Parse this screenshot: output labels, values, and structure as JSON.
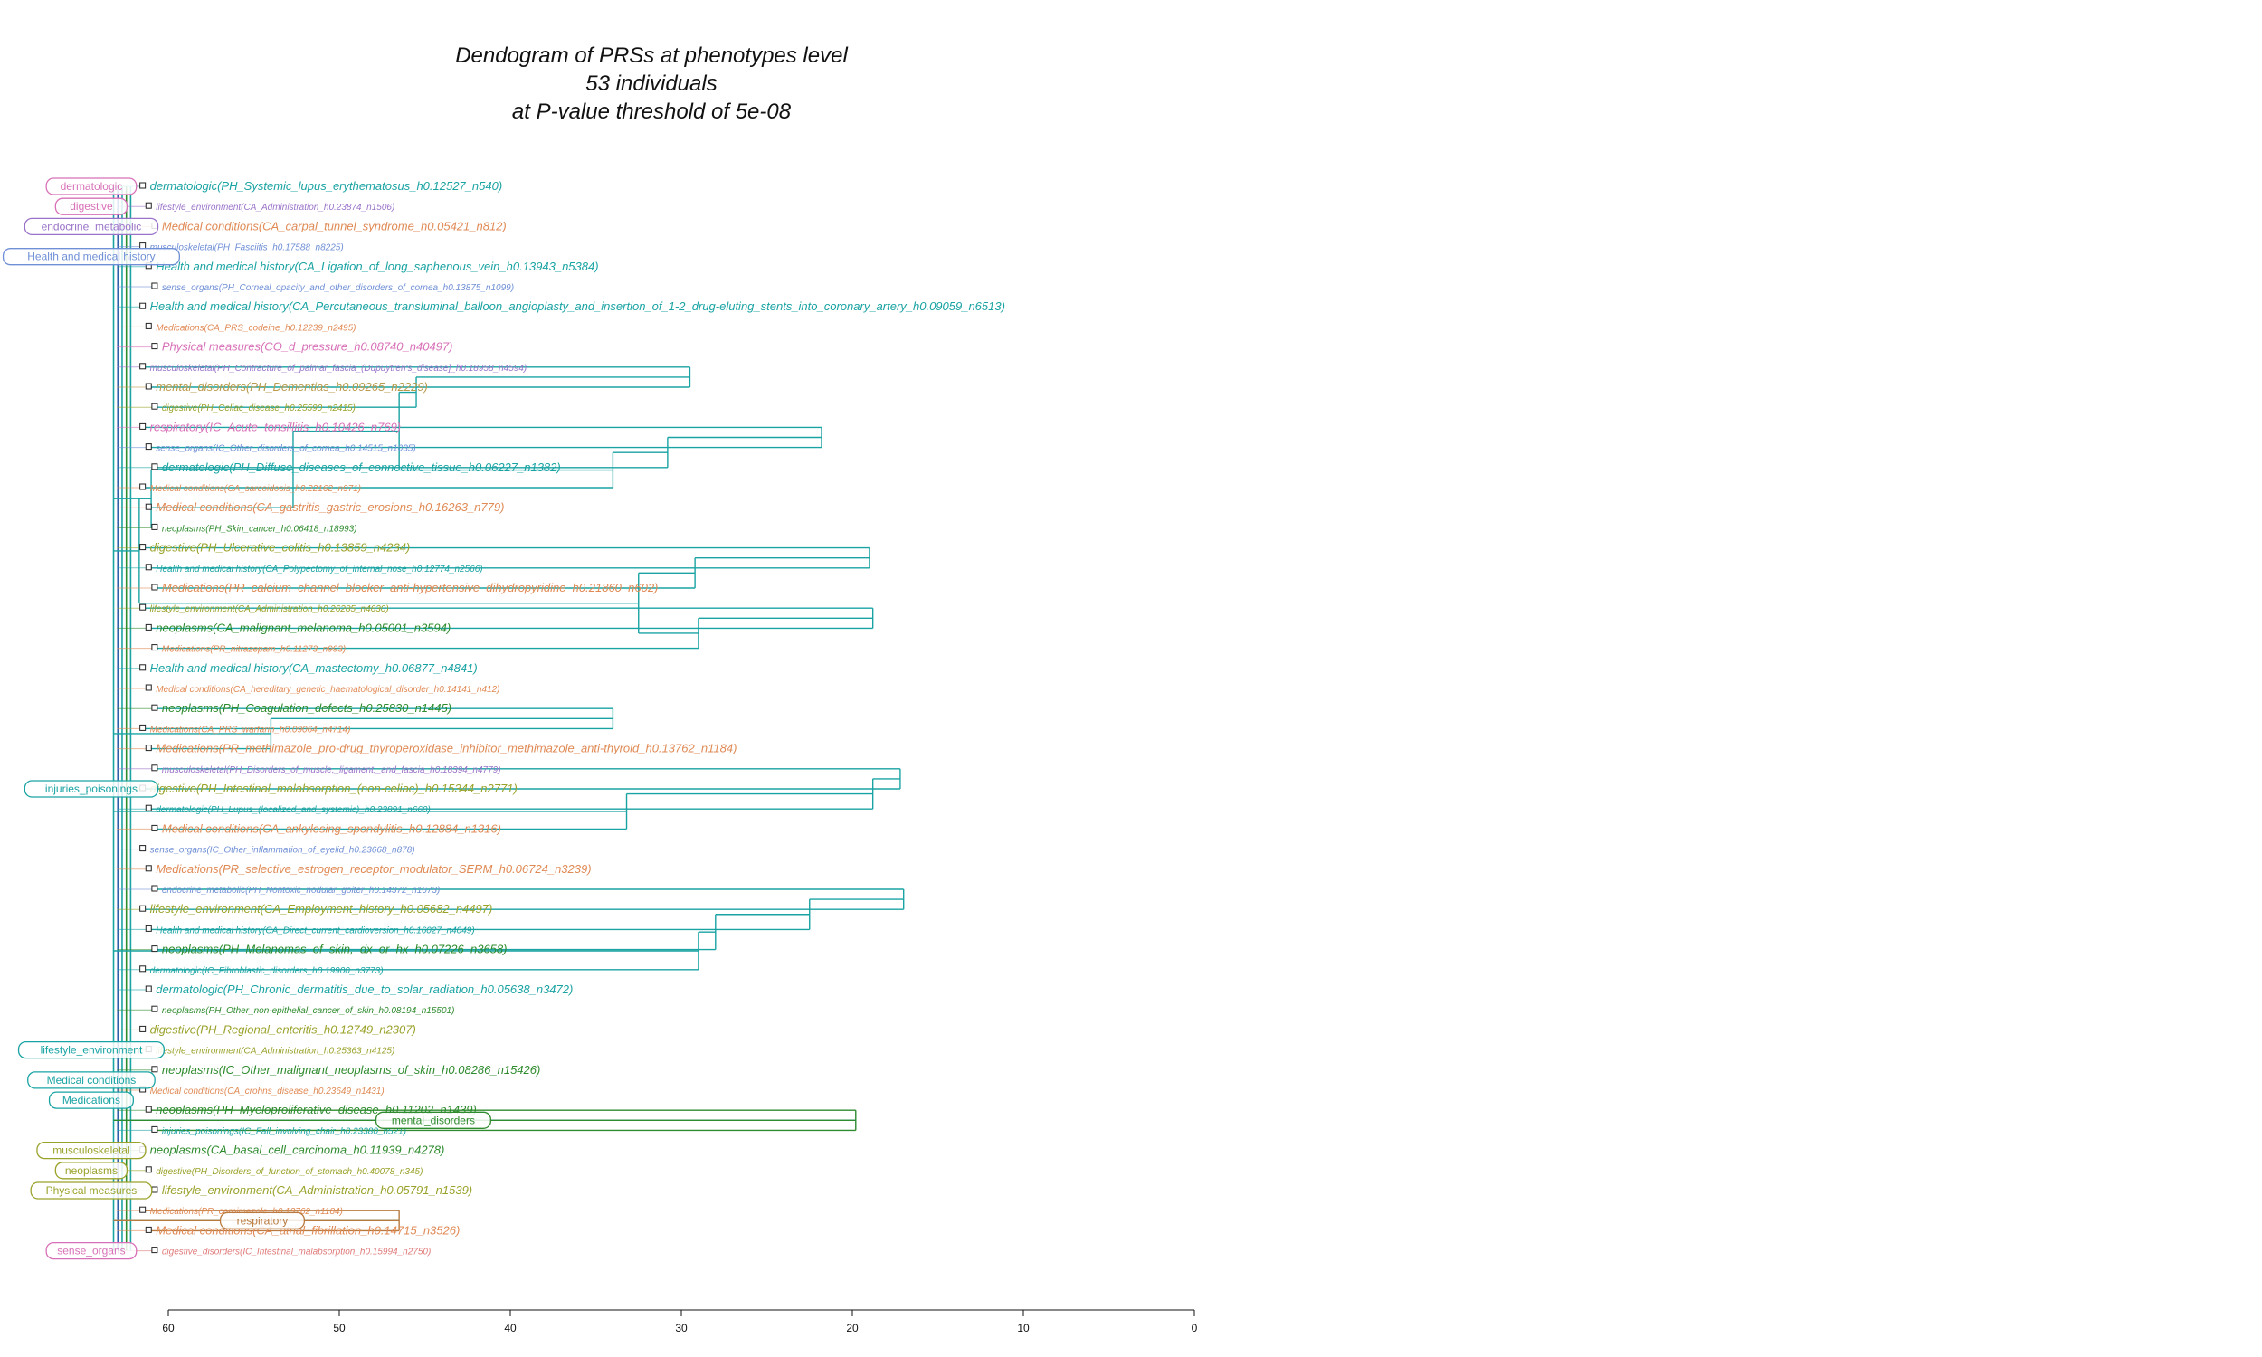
{
  "chart_data": {
    "type": "dendrogram",
    "title_lines": [
      "Dendogram of PRSs at phenotypes level",
      "53 individuals",
      "at P-value threshold of 5e-08"
    ],
    "x_axis": {
      "ticks": [
        60,
        50,
        40,
        30,
        20,
        10,
        0
      ],
      "range": [
        0,
        60
      ],
      "reversed": true
    },
    "colors": {
      "teal": "#1aa3a3",
      "pink": "#d870b8",
      "lightblue": "#6f8fd6",
      "purple": "#9a73c9",
      "orange": "#e08a55",
      "olive": "#9aa22a",
      "green": "#2e8b2e",
      "brown": "#b87a3e",
      "tan": "#b99a4a",
      "salmon": "#e07a7a"
    },
    "leaves": [
      {
        "label": "dermatologic(PH_Systemic_lupus_erythematosus_h0.12527_n540)",
        "color": "teal",
        "size": "l"
      },
      {
        "label": "lifestyle_environment(CA_Administration_h0.23874_n1506)",
        "color": "purple",
        "size": "s"
      },
      {
        "label": "Medical conditions(CA_carpal_tunnel_syndrome_h0.05421_n812)",
        "color": "orange",
        "size": "l"
      },
      {
        "label": "musculoskeletal(PH_Fasciitis_h0.17588_n8225)",
        "color": "lightblue",
        "size": "s"
      },
      {
        "label": "Health and medical history(CA_Ligation_of_long_saphenous_vein_h0.13943_n5384)",
        "color": "teal",
        "size": "l"
      },
      {
        "label": "sense_organs(PH_Corneal_opacity_and_other_disorders_of_cornea_h0.13875_n1099)",
        "color": "lightblue",
        "size": "s"
      },
      {
        "label": "Health and medical history(CA_Percutaneous_transluminal_balloon_angioplasty_and_insertion_of_1-2_drug-eluting_stents_into_coronary_artery_h0.09059_n6513)",
        "color": "teal",
        "size": "l"
      },
      {
        "label": "Medications(CA_PRS_codeine_h0.12239_n2495)",
        "color": "orange",
        "size": "s"
      },
      {
        "label": "Physical measures(CO_d_pressure_h0.08740_n40497)",
        "color": "pink",
        "size": "l"
      },
      {
        "label": "musculoskeletal(PH_Contracture_of_palmar_fascia_(Dupuytren's_disease]_h0.18958_n4594)",
        "color": "purple",
        "size": "s"
      },
      {
        "label": "mental_disorders(PH_Dementias_h0.09265_n2229)",
        "color": "tan",
        "size": "l"
      },
      {
        "label": "digestive(PH_Celiac_disease_h0.25590_n2415)",
        "color": "olive",
        "size": "s"
      },
      {
        "label": "respiratory(IC_Acute_tonsillitis_h0.10426_n769)",
        "color": "pink",
        "size": "l"
      },
      {
        "label": "sense_organs(IC_Other_disorders_of_cornea_h0.14515_n1035)",
        "color": "lightblue",
        "size": "s"
      },
      {
        "label": "dermatologic(PH_Diffuse_diseases_of_connective_tissue_h0.06227_n1382)",
        "color": "teal",
        "size": "l"
      },
      {
        "label": "Medical conditions(CA_sarcoidosis_h0.22162_n971)",
        "color": "orange",
        "size": "s"
      },
      {
        "label": "Medical conditions(CA_gastritis_gastric_erosions_h0.16263_n779)",
        "color": "orange",
        "size": "l"
      },
      {
        "label": "neoplasms(PH_Skin_cancer_h0.06418_n18993)",
        "color": "green",
        "size": "s"
      },
      {
        "label": "digestive(PH_Ulcerative_colitis_h0.13859_n4234)",
        "color": "olive",
        "size": "l"
      },
      {
        "label": "Health and medical history(CA_Polypectomy_of_internal_nose_h0.12774_n2566)",
        "color": "teal",
        "size": "s"
      },
      {
        "label": "Medications(PR_calcium_channel_blocker_anti-hypertensive_dihydropyridine_h0.21860_n602)",
        "color": "orange",
        "size": "l"
      },
      {
        "label": "lifestyle_environment(CA_Administration_h0.26285_n4630)",
        "color": "olive",
        "size": "s"
      },
      {
        "label": "neoplasms(CA_malignant_melanoma_h0.05001_n3594)",
        "color": "green",
        "size": "l"
      },
      {
        "label": "Medications(PR_nitrazepam_h0.11273_n993)",
        "color": "orange",
        "size": "s"
      },
      {
        "label": "Health and medical history(CA_mastectomy_h0.06877_n4841)",
        "color": "teal",
        "size": "l"
      },
      {
        "label": "Medical conditions(CA_hereditary_genetic_haematological_disorder_h0.14141_n412)",
        "color": "orange",
        "size": "s"
      },
      {
        "label": "neoplasms(PH_Coagulation_defects_h0.25830_n1445)",
        "color": "green",
        "size": "l"
      },
      {
        "label": "Medications(CA_PRS_warfarin_h0.09064_n4714)",
        "color": "orange",
        "size": "s"
      },
      {
        "label": "Medications(PR_methimazole_pro-drug_thyroperoxidase_inhibitor_methimazole_anti-thyroid_h0.13762_n1184)",
        "color": "orange",
        "size": "l"
      },
      {
        "label": "musculoskeletal(PH_Disorders_of_muscle,_ligament,_and_fascia_h0.18394_n4779)",
        "color": "purple",
        "size": "s"
      },
      {
        "label": "digestive(PH_Intestinal_malabsorption_(non-celiac)_h0.15344_n2771)",
        "color": "olive",
        "size": "l"
      },
      {
        "label": "dermatologic(PH_Lupus_(localized_and_systemic)_h0.23891_n660)",
        "color": "teal",
        "size": "s"
      },
      {
        "label": "Medical conditions(CA_ankylosing_spondylitis_h0.12884_n1316)",
        "color": "orange",
        "size": "l"
      },
      {
        "label": "sense_organs(IC_Other_inflammation_of_eyelid_h0.23668_n878)",
        "color": "lightblue",
        "size": "s"
      },
      {
        "label": "Medications(PR_selective_estrogen_receptor_modulator_SERM_h0.06724_n3239)",
        "color": "orange",
        "size": "l"
      },
      {
        "label": "endocrine_metabolic(PH_Nontoxic_nodular_goiter_h0.14372_n1673)",
        "color": "lightblue",
        "size": "s"
      },
      {
        "label": "lifestyle_environment(CA_Employment_history_h0.05682_n4497)",
        "color": "olive",
        "size": "l"
      },
      {
        "label": "Health and medical history(CA_Direct_current_cardioversion_h0.16027_n4049)",
        "color": "teal",
        "size": "s"
      },
      {
        "label": "neoplasms(PH_Melanomas_of_skin,_dx_or_hx_h0.07226_n3658)",
        "color": "green",
        "size": "l"
      },
      {
        "label": "dermatologic(IC_Fibroblastic_disorders_h0.19900_n3773)",
        "color": "teal",
        "size": "s"
      },
      {
        "label": "dermatologic(PH_Chronic_dermatitis_due_to_solar_radiation_h0.05638_n3472)",
        "color": "teal",
        "size": "l"
      },
      {
        "label": "neoplasms(PH_Other_non-epithelial_cancer_of_skin_h0.08194_n15501)",
        "color": "green",
        "size": "s"
      },
      {
        "label": "digestive(PH_Regional_enteritis_h0.12749_n2307)",
        "color": "olive",
        "size": "l"
      },
      {
        "label": "lifestyle_environment(CA_Administration_h0.25363_n4125)",
        "color": "olive",
        "size": "s"
      },
      {
        "label": "neoplasms(IC_Other_malignant_neoplasms_of_skin_h0.08286_n15426)",
        "color": "green",
        "size": "l"
      },
      {
        "label": "Medical conditions(CA_crohns_disease_h0.23649_n1431)",
        "color": "orange",
        "size": "s"
      },
      {
        "label": "neoplasms(PH_Myeloproliferative_disease_h0.11202_n1439)",
        "color": "green",
        "size": "l"
      },
      {
        "label": "injuries_poisonings(IC_Fall_involving_chair_h0.23380_n521)",
        "color": "teal",
        "size": "s"
      },
      {
        "label": "neoplasms(CA_basal_cell_carcinoma_h0.11939_n4278)",
        "color": "green",
        "size": "l"
      },
      {
        "label": "digestive(PH_Disorders_of_function_of_stomach_h0.40078_n345)",
        "color": "olive",
        "size": "s"
      },
      {
        "label": "lifestyle_environment(CA_Administration_h0.05791_n1539)",
        "color": "olive",
        "size": "l"
      },
      {
        "label": "Medications(PR_carbimazole_h0.13762_n1184)",
        "color": "orange",
        "size": "s"
      },
      {
        "label": "Medical conditions(CA_atrial_fibrillation_h0.14715_n3526)",
        "color": "orange",
        "size": "l"
      },
      {
        "label": "digestive_disorders(IC_Intestinal_malabsorption_h0.15994_n2750)",
        "color": "salmon",
        "size": "s"
      }
    ],
    "merges": [
      {
        "a": "L9",
        "b": "L10",
        "h": 29.5,
        "color": "teal"
      },
      {
        "a": "M0",
        "b": "L11",
        "h": 45.5,
        "color": "teal"
      },
      {
        "a": "L12",
        "b": "L13",
        "h": 21.8,
        "color": "teal"
      },
      {
        "a": "M2",
        "b": "L14",
        "h": 30.8,
        "color": "teal"
      },
      {
        "a": "M3",
        "b": "L15",
        "h": 34.0,
        "color": "teal"
      },
      {
        "a": "M1",
        "b": "M4",
        "h": 46.5,
        "color": "teal"
      },
      {
        "a": "M5",
        "b": "L16",
        "h": 52.7,
        "color": "teal"
      },
      {
        "a": "M6",
        "b": "L17",
        "h": 61.0,
        "color": "teal"
      },
      {
        "a": "L18",
        "b": "L19",
        "h": 19.0,
        "color": "teal"
      },
      {
        "a": "M8",
        "b": "L20",
        "h": 29.2,
        "color": "teal"
      },
      {
        "a": "L21",
        "b": "L22",
        "h": 18.8,
        "color": "teal"
      },
      {
        "a": "M10",
        "b": "L23",
        "h": 29.0,
        "color": "teal"
      },
      {
        "a": "M9",
        "b": "M11",
        "h": 32.5,
        "color": "teal"
      },
      {
        "a": "M7",
        "b": "M12",
        "h": 61.7,
        "color": "teal"
      },
      {
        "a": "L26",
        "b": "L27",
        "h": 34.0,
        "color": "teal"
      },
      {
        "a": "M14",
        "b": "L28",
        "h": 54.0,
        "color": "teal"
      },
      {
        "a": "L29",
        "b": "L30",
        "h": 17.2,
        "color": "teal"
      },
      {
        "a": "M16",
        "b": "L31",
        "h": 18.8,
        "color": "teal"
      },
      {
        "a": "M17",
        "b": "L32",
        "h": 33.2,
        "color": "teal"
      },
      {
        "a": "L35",
        "b": "L36",
        "h": 17.0,
        "color": "teal"
      },
      {
        "a": "M19",
        "b": "L37",
        "h": 22.5,
        "color": "teal"
      },
      {
        "a": "M20",
        "b": "L38",
        "h": 28.0,
        "color": "teal"
      },
      {
        "a": "M21",
        "b": "L39",
        "h": 29.0,
        "color": "teal"
      },
      {
        "a": "L46",
        "b": "L47",
        "h": 19.8,
        "color": "green"
      },
      {
        "a": "L51",
        "b": "L52",
        "h": 46.5,
        "color": "brown"
      }
    ],
    "cluster_labels": [
      {
        "text": "dermatologic",
        "color": "pink",
        "leaf": 0
      },
      {
        "text": "digestive",
        "color": "pink",
        "leaf": 1
      },
      {
        "text": "endocrine_metabolic",
        "color": "purple",
        "leaf": 2
      },
      {
        "text": "Health and medical history",
        "color": "lightblue",
        "leaf": 3.5
      },
      {
        "text": "injuries_poisonings",
        "color": "teal",
        "leaf": 30
      },
      {
        "text": "lifestyle_environment",
        "color": "teal",
        "leaf": 43
      },
      {
        "text": "Medical conditions",
        "color": "teal",
        "leaf": 44.5
      },
      {
        "text": "Medications",
        "color": "teal",
        "leaf": 45.5
      },
      {
        "text": "mental_disorders",
        "color": "green",
        "leaf": 46.5
      },
      {
        "text": "musculoskeletal",
        "color": "olive",
        "leaf": 48
      },
      {
        "text": "neoplasms",
        "color": "olive",
        "leaf": 49
      },
      {
        "text": "Physical measures",
        "color": "olive",
        "leaf": 50
      },
      {
        "text": "respiratory",
        "color": "brown",
        "leaf": 51.5
      },
      {
        "text": "sense_organs",
        "color": "pink",
        "leaf": 53
      }
    ]
  }
}
